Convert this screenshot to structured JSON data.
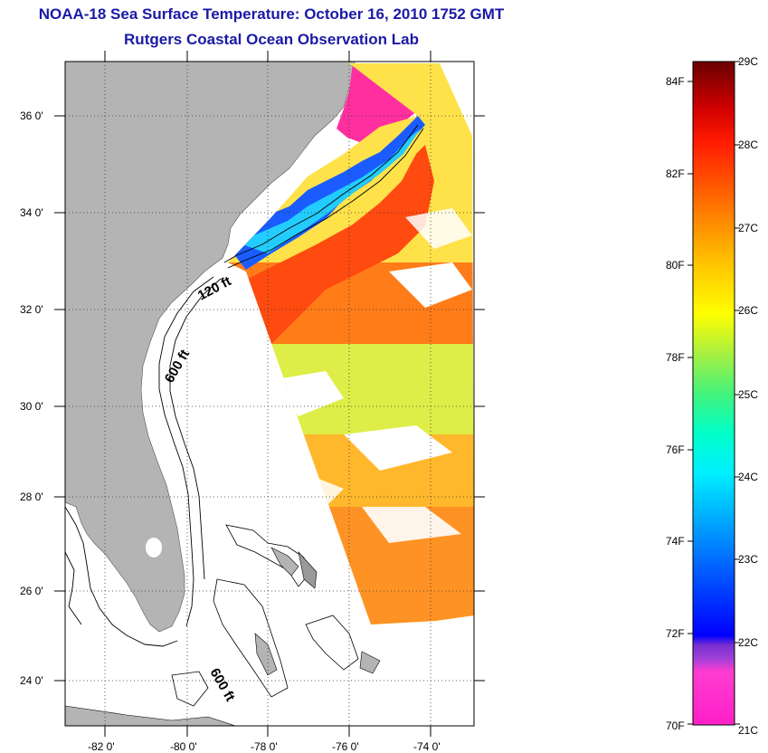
{
  "title": {
    "line1": "NOAA-18 Sea Surface Temperature:  October 16, 2010 1752 GMT",
    "line2": "Rutgers Coastal Ocean Observation Lab"
  },
  "map": {
    "lat_labels": [
      "36 0'",
      "34 0'",
      "32 0'",
      "30 0'",
      "28 0'",
      "26 0'",
      "24 0'"
    ],
    "lon_labels": [
      "-82 0'",
      "-80 0'",
      "-78 0'",
      "-76 0'",
      "-74 0'"
    ],
    "depth_contour_labels": [
      "120 ft",
      "600 ft",
      "600 ft"
    ],
    "colors": {
      "land": "#b4b4b4",
      "water_no_data": "#ffffff",
      "grid": "#000000"
    }
  },
  "colorbar": {
    "fahrenheit_labels": [
      "84F",
      "82F",
      "80F",
      "78F",
      "76F",
      "74F",
      "72F",
      "70F"
    ],
    "celsius_labels": [
      "29C",
      "28C",
      "27C",
      "26C",
      "25C",
      "24C",
      "23C",
      "22C",
      "21C"
    ],
    "colors": [
      "#ff1fc8",
      "#7a2fd0",
      "#0000ff",
      "#0064ff",
      "#00ccff",
      "#00ffcc",
      "#44f27a",
      "#c8f032",
      "#ffff00",
      "#ffc000",
      "#ff8a00",
      "#ff5000",
      "#ff2000",
      "#e00000",
      "#a00000",
      "#6a0000"
    ]
  }
}
